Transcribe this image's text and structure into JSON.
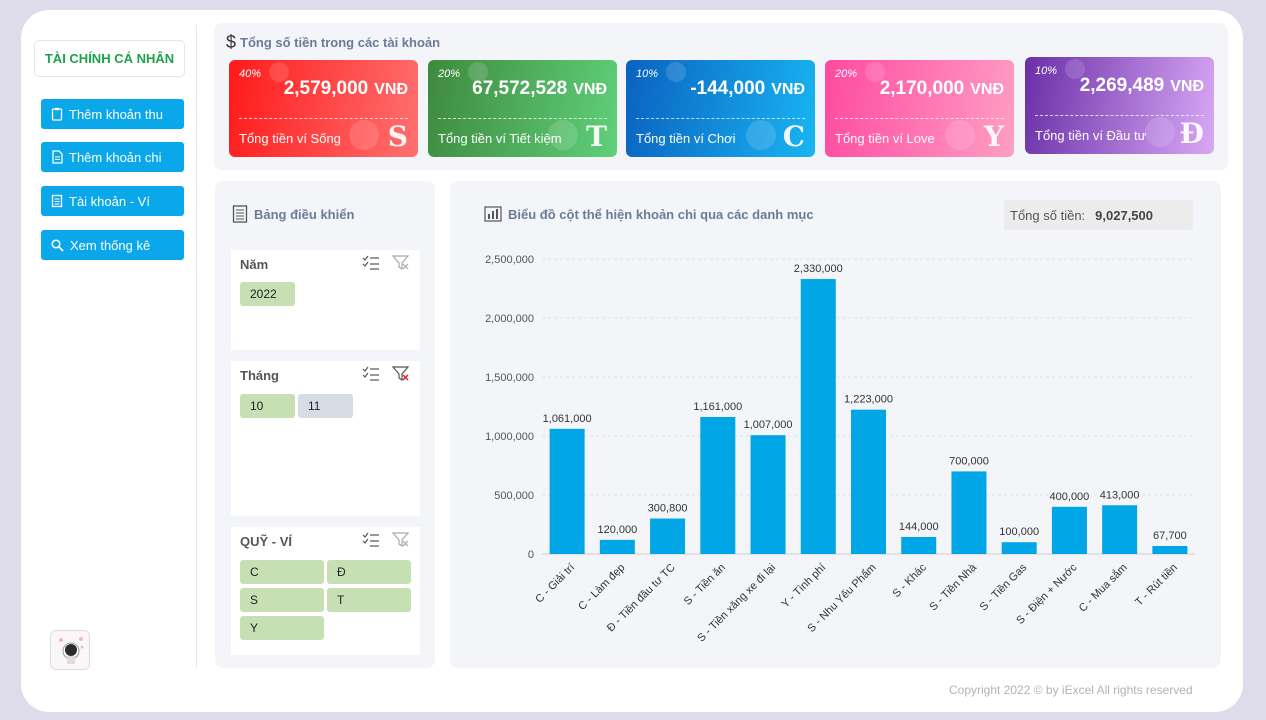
{
  "sidebar": {
    "brand": "TÀI CHÍNH CÁ NHÂN",
    "nav": [
      {
        "label": "Thêm khoản thu",
        "icon": "clipboard-icon"
      },
      {
        "label": "Thêm khoản chi",
        "icon": "document-icon"
      },
      {
        "label": "Tài khoản - Ví",
        "icon": "ledger-icon"
      },
      {
        "label": "Xem thống kê",
        "icon": "search-icon"
      }
    ]
  },
  "summary": {
    "title": "Tổng số tiền trong các tài khoản",
    "cards": [
      {
        "pct": "40%",
        "amount": "2,579,000",
        "currency": "VNĐ",
        "label": "Tổng tiền ví Sống",
        "letter": "S",
        "color_from": "#ff1a1a",
        "color_to": "#ff7070"
      },
      {
        "pct": "20%",
        "amount": "67,572,528",
        "currency": "VNĐ",
        "label": "Tổng tiền ví Tiết kiệm",
        "letter": "T",
        "color_from": "#3e8a3e",
        "color_to": "#5fd07a"
      },
      {
        "pct": "10%",
        "amount": "-144,000",
        "currency": "VNĐ",
        "label": "Tổng tiền ví Chơi",
        "letter": "C",
        "color_from": "#0a62c0",
        "color_to": "#18b5f2"
      },
      {
        "pct": "20%",
        "amount": "2,170,000",
        "currency": "VNĐ",
        "label": "Tổng tiền ví Love",
        "letter": "Y",
        "color_from": "#ff4aa0",
        "color_to": "#ff9ec4"
      },
      {
        "pct": "10%",
        "amount": "2,269,489",
        "currency": "VNĐ",
        "label": "Tổng tiền ví Đầu tư",
        "letter": "Đ",
        "color_from": "#6a2fa8",
        "color_to": "#d8a8f5"
      }
    ]
  },
  "control": {
    "title": "Bảng điều khiển",
    "slicers": [
      {
        "title": "Năm",
        "filter_active": false,
        "items": [
          {
            "label": "2022",
            "selected": true
          }
        ]
      },
      {
        "title": "Tháng",
        "filter_active": true,
        "items": [
          {
            "label": "10",
            "selected": true
          },
          {
            "label": "11",
            "selected": false
          }
        ]
      },
      {
        "title": "QUỸ - VÍ",
        "filter_active": false,
        "items": [
          {
            "label": "C",
            "selected": true
          },
          {
            "label": "Đ",
            "selected": true
          },
          {
            "label": "S",
            "selected": true
          },
          {
            "label": "T",
            "selected": true
          },
          {
            "label": "Y",
            "selected": true
          }
        ]
      }
    ]
  },
  "chart_panel": {
    "total_label": "Tổng số tiền:",
    "total_value": "9,027,500"
  },
  "chart_data": {
    "type": "bar",
    "title": "Biểu đồ cột thể hiện khoản chi qua các danh mục",
    "categories": [
      "C - Giải trí",
      "C - Làm đẹp",
      "Đ - Tiền đầu tư TC",
      "S - Tiền ăn",
      "S - Tiền xăng xe đi lại",
      "Y - Tình phí",
      "S - Nhu Yếu Phẩm",
      "S - Khác",
      "S - Tiền Nhà",
      "S - Tiền Gas",
      "S - Điện + Nước",
      "C - Mua sắm",
      "T - Rút tiền"
    ],
    "values": [
      1061000,
      120000,
      300800,
      1161000,
      1007000,
      2330000,
      1223000,
      144000,
      700000,
      100000,
      400000,
      413000,
      67700
    ],
    "data_labels": [
      "1,061,000",
      "120,000",
      "300,800",
      "1,161,000",
      "1,007,000",
      "2,330,000",
      "1,223,000",
      "144,000",
      "700,000",
      "100,000",
      "400,000",
      "413,000",
      "67,700"
    ],
    "yticks": [
      0,
      500000,
      1000000,
      1500000,
      2000000,
      2500000
    ],
    "ytick_labels": [
      "0",
      "500,000",
      "1,000,000",
      "1,500,000",
      "2,000,000",
      "2,500,000"
    ],
    "ylim": [
      0,
      2500000
    ],
    "bar_color": "#00a6e6",
    "grid": true,
    "xlabel": "",
    "ylabel": ""
  },
  "footer": {
    "copyright": "Copyright 2022 © by iExcel All rights reserved"
  }
}
